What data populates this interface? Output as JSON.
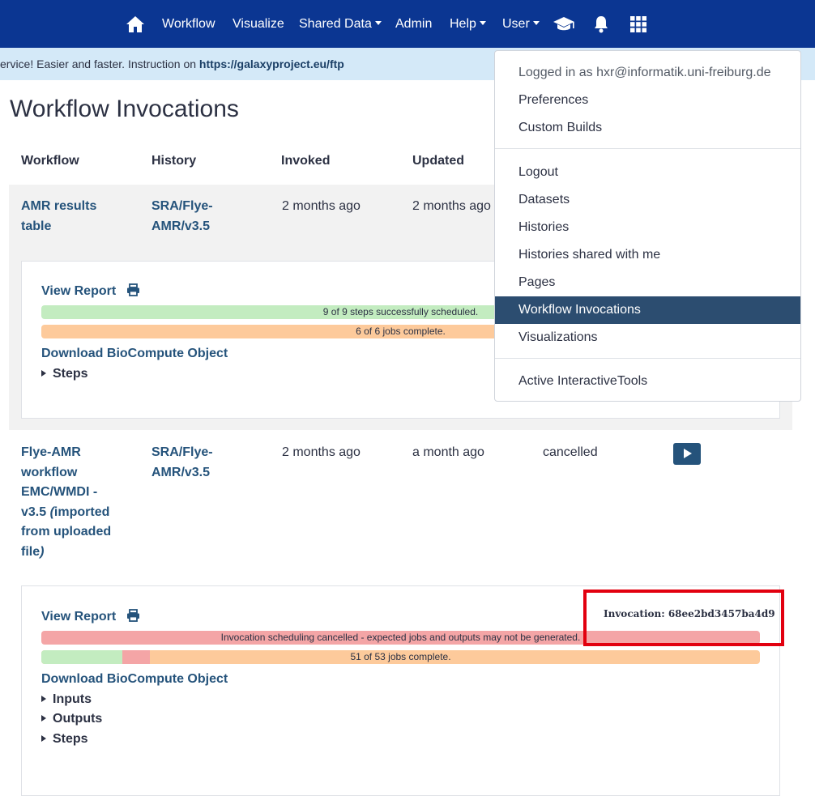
{
  "navbar": {
    "items": [
      "Workflow",
      "Visualize",
      "Shared Data",
      "Admin",
      "Help",
      "User"
    ],
    "icons": [
      "home-icon",
      "graduation-cap-icon",
      "bell-icon",
      "grid-icon"
    ],
    "color": "#0b3692"
  },
  "banner": {
    "text": "ervice! Easier and faster. Instruction on ",
    "link": "https://galaxyproject.eu/ftp"
  },
  "page": {
    "title": "Workflow Invocations"
  },
  "table": {
    "headers": [
      "Workflow",
      "History",
      "Invoked",
      "Updated"
    ],
    "rows": [
      {
        "workflow": "AMR results table",
        "history": "SRA/Flye-AMR/v3.5",
        "invoked": "2 months ago",
        "updated": "2 months ago",
        "details": {
          "view_report": "View Report",
          "steps_bar": "9 of 9 steps successfully scheduled.",
          "jobs_bar": "6 of 6 jobs complete.",
          "download": "Download BioCompute Object",
          "sections": [
            "Steps"
          ]
        }
      },
      {
        "workflow_parts": [
          "Flye-AMR workflow EMC/WMDI - v3.5 ",
          "(",
          "imported from uploaded file",
          ")"
        ],
        "history": "SRA/Flye-AMR/v3.5",
        "invoked": "2 months ago",
        "updated": "a month ago",
        "state": "cancelled",
        "details": {
          "view_report": "View Report",
          "invocation_id": "Invocation: 68ee2bd3457ba4d9",
          "steps_bar": "Invocation scheduling cancelled - expected jobs and outputs may not be generated.",
          "jobs_bar": "51 of 53 jobs complete.",
          "jobs_fractions": {
            "ok": 0.113,
            "error": 0.038,
            "other": 0.849
          },
          "download": "Download BioCompute Object",
          "sections": [
            "Inputs",
            "Outputs",
            "Steps"
          ]
        }
      }
    ]
  },
  "user_menu": {
    "logged_in": "Logged in as hxr@informatik.uni-freiburg.de",
    "items_a": [
      "Preferences",
      "Custom Builds"
    ],
    "items_b": [
      "Logout",
      "Datasets",
      "Histories",
      "Histories shared with me",
      "Pages",
      "Workflow Invocations",
      "Visualizations"
    ],
    "active": "Workflow Invocations",
    "items_c": [
      "Active InteractiveTools"
    ]
  },
  "colors": {
    "success": "#c3ecc0",
    "warning": "#fdca9b",
    "danger": "#f4a5a6",
    "link": "#25537b",
    "highlight": "#e2000f"
  }
}
